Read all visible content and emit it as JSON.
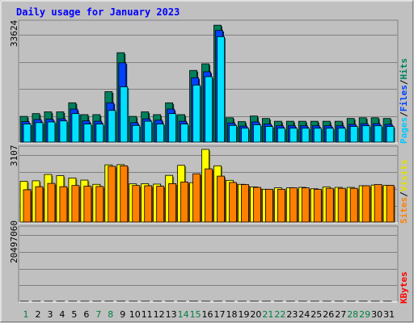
{
  "title": "Daily usage for January 2023",
  "colors": {
    "background": "#c0c0c0",
    "title": "#0000ff",
    "hits": "#00805c",
    "files": "#0040ff",
    "pages": "#00e0ff",
    "visits": "#ffff00",
    "sites": "#ff8000",
    "kbytes": "#ff0000",
    "weekend_label": "#008040",
    "weekday_label": "#000000"
  },
  "chart_data": [
    {
      "type": "bar",
      "panel": "hits-files-pages",
      "ymax_label": "33624",
      "ymax": 33624,
      "legend": [
        "Pages",
        "/",
        "Files",
        "/",
        "Hits"
      ],
      "categories": [
        "1",
        "2",
        "3",
        "4",
        "5",
        "6",
        "7",
        "8",
        "9",
        "10",
        "11",
        "12",
        "13",
        "14",
        "15",
        "16",
        "17",
        "18",
        "19",
        "20",
        "21",
        "22",
        "23",
        "24",
        "25",
        "26",
        "27",
        "28",
        "29",
        "30",
        "31"
      ],
      "series": [
        {
          "name": "Hits",
          "values": [
            7400,
            8200,
            8700,
            8700,
            11300,
            7900,
            7900,
            14500,
            25700,
            7400,
            8700,
            7900,
            11300,
            7900,
            20600,
            22500,
            33600,
            7000,
            5900,
            7500,
            6800,
            6000,
            6000,
            6000,
            6000,
            6000,
            6000,
            6800,
            7000,
            7000,
            6800
          ]
        },
        {
          "name": "Files",
          "values": [
            5900,
            6500,
            6600,
            6700,
            9500,
            6100,
            6000,
            11300,
            22800,
            5600,
            6700,
            6300,
            9500,
            6000,
            18500,
            20200,
            32100,
            5500,
            4600,
            5800,
            5200,
            4700,
            4700,
            4700,
            4700,
            4700,
            4700,
            5100,
            5300,
            5300,
            5100
          ]
        },
        {
          "name": "Pages",
          "values": [
            5200,
            5600,
            5800,
            6100,
            8200,
            5200,
            5200,
            9100,
            15900,
            4800,
            6000,
            5200,
            8200,
            5200,
            16400,
            18800,
            30300,
            4800,
            4000,
            5000,
            4500,
            4000,
            4000,
            4000,
            4000,
            4000,
            4000,
            4500,
            4700,
            4700,
            4500
          ]
        }
      ]
    },
    {
      "type": "bar",
      "panel": "visits-sites",
      "ymax_label": "3107",
      "ymax": 3107,
      "legend": [
        "Sites",
        "/",
        "Visits"
      ],
      "categories": [
        "1",
        "2",
        "3",
        "4",
        "5",
        "6",
        "7",
        "8",
        "9",
        "10",
        "11",
        "12",
        "13",
        "14",
        "15",
        "16",
        "17",
        "18",
        "19",
        "20",
        "21",
        "22",
        "23",
        "24",
        "25",
        "26",
        "27",
        "28",
        "29",
        "30",
        "31"
      ],
      "series": [
        {
          "name": "Visits",
          "values": [
            1740,
            1760,
            2030,
            1980,
            1880,
            1790,
            1610,
            2440,
            2450,
            1630,
            1640,
            1620,
            1990,
            2420,
            1680,
            3100,
            2400,
            1780,
            1610,
            1500,
            1400,
            1460,
            1460,
            1480,
            1420,
            1500,
            1480,
            1480,
            1550,
            1580,
            1570
          ]
        },
        {
          "name": "Sites",
          "values": [
            1380,
            1510,
            1650,
            1510,
            1560,
            1530,
            1520,
            2380,
            2400,
            1560,
            1550,
            1530,
            1640,
            1710,
            2060,
            2270,
            1960,
            1690,
            1600,
            1480,
            1400,
            1400,
            1460,
            1460,
            1400,
            1440,
            1440,
            1440,
            1550,
            1600,
            1570
          ]
        }
      ]
    },
    {
      "type": "bar",
      "panel": "kbytes",
      "ymax_label": "20497060",
      "ymax": 20497060,
      "legend": [
        "KBytes"
      ],
      "categories": [
        "1",
        "2",
        "3",
        "4",
        "5",
        "6",
        "7",
        "8",
        "9",
        "10",
        "11",
        "12",
        "13",
        "14",
        "15",
        "16",
        "17",
        "18",
        "19",
        "20",
        "21",
        "22",
        "23",
        "24",
        "25",
        "26",
        "27",
        "28",
        "29",
        "30",
        "31"
      ],
      "series": [
        {
          "name": "KBytes",
          "values": [
            4300,
            7900,
            5900,
            5900,
            6900,
            6700,
            7400,
            11500,
            19800,
            6000,
            7200,
            8300,
            5900,
            8000,
            16000,
            7200,
            6300,
            5800,
            4300,
            8500,
            5900,
            8300,
            8900,
            6000,
            6000,
            5900,
            8000,
            7700,
            8600,
            6000,
            7700
          ]
        }
      ]
    }
  ]
}
